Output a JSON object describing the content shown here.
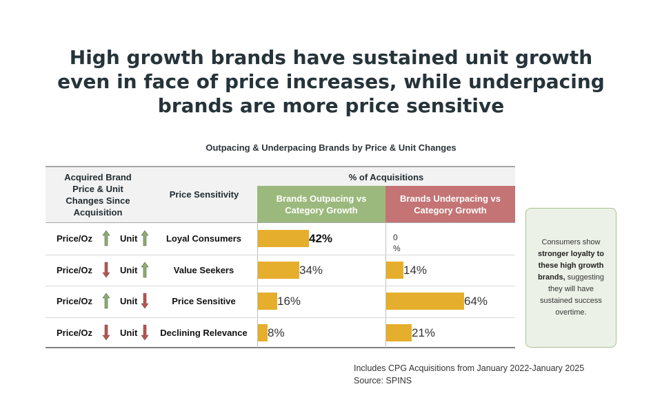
{
  "title": "High growth brands have sustained unit growth even in face of price increases, while underpacing brands are more price sensitive",
  "chart_data": {
    "type": "bar",
    "title": "Outpacing & Underpacing Brands by Price & Unit Changes",
    "header_left": "Acquired Brand Price & Unit Changes Since Acquisition",
    "header_middle": "Price Sensitivity",
    "header_group": "% of Acquisitions",
    "categories": [
      "Loyal Consumers",
      "Value Seekers",
      "Price Sensitive",
      "Declining Relevance"
    ],
    "rows": [
      {
        "price_label": "Price/Oz",
        "price_dir": "up",
        "unit_label": "Unit",
        "unit_dir": "up"
      },
      {
        "price_label": "Price/Oz",
        "price_dir": "down",
        "unit_label": "Unit",
        "unit_dir": "up"
      },
      {
        "price_label": "Price/Oz",
        "price_dir": "up",
        "unit_label": "Unit",
        "unit_dir": "down"
      },
      {
        "price_label": "Price/Oz",
        "price_dir": "down",
        "unit_label": "Unit",
        "unit_dir": "down"
      }
    ],
    "series": [
      {
        "name": "Brands Outpacing vs Category Growth",
        "values": [
          42,
          34,
          16,
          8
        ],
        "labels": [
          "42%",
          "34%",
          "16%",
          "8%"
        ],
        "color": "#e5ae2c",
        "header_color": "#9cb97d"
      },
      {
        "name": "Brands Underpacing vs Category Growth",
        "values": [
          0,
          14,
          64,
          21
        ],
        "labels": [
          "0\n%",
          "14%",
          "64%",
          "21%"
        ],
        "color": "#e5ae2c",
        "header_color": "#c47475"
      }
    ],
    "scale_max": 100,
    "arrow_colors": {
      "up": "#8ab06b",
      "down": "#c0504d"
    }
  },
  "callout": {
    "pre": "Consumers show ",
    "strong": "stronger loyalty to these high growth brands,",
    "post": " suggesting they will have sustained success overtime."
  },
  "footnote": {
    "line1": "Includes CPG Acquisitions from January 2022-January 2025",
    "line2": "Source: SPINS"
  }
}
